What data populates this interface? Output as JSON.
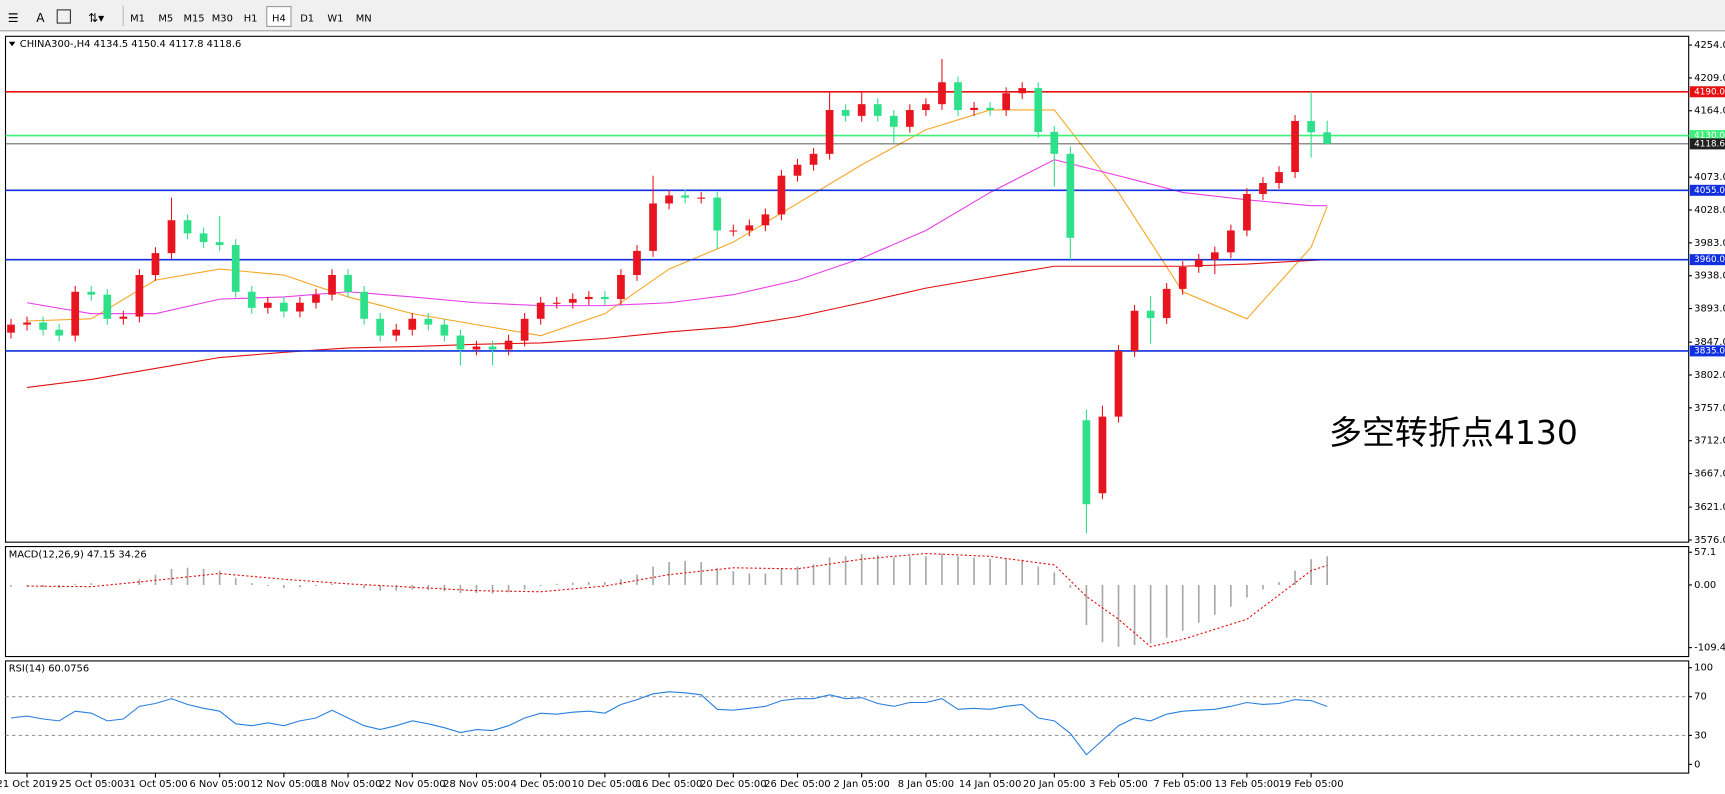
{
  "toolbar": {
    "text_tool": "A",
    "timeframes": [
      "M1",
      "M5",
      "M15",
      "M30",
      "H1",
      "H4",
      "D1",
      "W1",
      "MN"
    ],
    "active": "H4"
  },
  "chart_data": [
    {
      "type": "candlestick",
      "title": "CHINA300-,H4 4134.5 4150.4 4117.8 4118.6",
      "categories": [
        null,
        "21 Oct 2019",
        null,
        null,
        null,
        "25 Oct 05:00",
        null,
        null,
        null,
        "31 Oct 05:00",
        null,
        null,
        null,
        "6 Nov 05:00",
        null,
        null,
        null,
        "12 Nov 05:00",
        null,
        null,
        null,
        "18 Nov 05:00",
        null,
        null,
        null,
        "22 Nov 05:00",
        null,
        null,
        null,
        "28 Nov 05:00",
        null,
        null,
        null,
        "4 Dec 05:00",
        null,
        null,
        null,
        "10 Dec 05:00",
        null,
        null,
        null,
        "16 Dec 05:00",
        null,
        null,
        null,
        "20 Dec 05:00",
        null,
        null,
        null,
        "26 Dec 05:00",
        null,
        null,
        null,
        "2 Jan 05:00",
        null,
        null,
        null,
        "8 Jan 05:00",
        null,
        null,
        null,
        "14 Jan 05:00",
        null,
        null,
        null,
        "20 Jan 05:00",
        null,
        null,
        null,
        "3 Feb 05:00",
        null,
        null,
        null,
        "7 Feb 05:00",
        null,
        null,
        null,
        "13 Feb 05:00",
        null,
        null,
        null,
        "19 Feb 05:00",
        null
      ],
      "open": [
        3860,
        3871,
        3874,
        3864,
        3856,
        3916,
        3912,
        3879,
        3882,
        3939,
        3969,
        4014,
        3996,
        3984,
        3980,
        3916,
        3894,
        3901,
        3889,
        3901,
        3912,
        3939,
        3916,
        3879,
        3856,
        3864,
        3879,
        3871,
        3856,
        3837,
        3841,
        3837,
        3849,
        3879,
        3901,
        3901,
        3906,
        3909,
        3906,
        3939,
        3972,
        4037,
        4048,
        4045,
        4045,
        4000,
        4000,
        4007,
        4022,
        4075,
        4090,
        4105,
        4165,
        4157,
        4173,
        4157,
        4142,
        4165,
        4173,
        4203,
        4165,
        4168,
        4165,
        4188,
        4195,
        4135,
        4105,
        3740,
        3640,
        3745,
        3835,
        3890,
        3880,
        3920,
        3950,
        3960,
        3970,
        4000,
        4050,
        4065,
        4080,
        4150,
        4134.5
      ],
      "high": [
        3879,
        3882,
        3882,
        3872,
        3924,
        3924,
        3920,
        3890,
        3947,
        3977,
        4045,
        4022,
        4004,
        4020,
        3988,
        3924,
        3909,
        3909,
        3909,
        3920,
        3947,
        3947,
        3924,
        3887,
        3872,
        3887,
        3887,
        3879,
        3864,
        3849,
        3849,
        3857,
        3887,
        3909,
        3909,
        3914,
        3917,
        3917,
        3947,
        3980,
        4075,
        4056,
        4056,
        4053,
        4053,
        4008,
        4015,
        4030,
        4083,
        4098,
        4113,
        4190,
        4173,
        4190,
        4181,
        4165,
        4173,
        4181,
        4235,
        4211,
        4176,
        4176,
        4196,
        4203,
        4203,
        4143,
        4115,
        3755,
        3760,
        3843,
        3898,
        3910,
        3928,
        3958,
        3968,
        3978,
        4008,
        4058,
        4073,
        4088,
        4158,
        4190,
        4150.4
      ],
      "low": [
        3852,
        3863,
        3856,
        3848,
        3848,
        3904,
        3871,
        3871,
        3874,
        3931,
        3961,
        3988,
        3976,
        3972,
        3908,
        3886,
        3886,
        3881,
        3881,
        3893,
        3904,
        3908,
        3871,
        3848,
        3848,
        3856,
        3863,
        3848,
        3815,
        3829,
        3815,
        3829,
        3841,
        3871,
        3893,
        3893,
        3898,
        3898,
        3898,
        3931,
        3964,
        4029,
        4037,
        4037,
        3975,
        3992,
        3992,
        3999,
        4014,
        4067,
        4082,
        4097,
        4149,
        4149,
        4149,
        4120,
        4134,
        4157,
        4165,
        4157,
        4157,
        4157,
        4157,
        4180,
        4127,
        4060,
        3960,
        3585,
        3632,
        3737,
        3827,
        3845,
        3872,
        3912,
        3942,
        3940,
        3962,
        3992,
        4042,
        4057,
        4072,
        4100,
        4117.8
      ],
      "close": [
        3871,
        3874,
        3864,
        3856,
        3916,
        3912,
        3879,
        3882,
        3939,
        3969,
        4014,
        3996,
        3984,
        3980,
        3916,
        3894,
        3901,
        3889,
        3901,
        3912,
        3939,
        3916,
        3879,
        3856,
        3864,
        3879,
        3871,
        3856,
        3837,
        3841,
        3837,
        3849,
        3879,
        3901,
        3901,
        3906,
        3909,
        3906,
        3939,
        3972,
        4037,
        4048,
        4045,
        4045,
        4000,
        4000,
        4007,
        4022,
        4075,
        4090,
        4105,
        4165,
        4157,
        4173,
        4157,
        4142,
        4165,
        4173,
        4203,
        4165,
        4168,
        4165,
        4188,
        4195,
        4135,
        4105,
        3990,
        3625,
        3745,
        3835,
        3890,
        3880,
        3920,
        3950,
        3960,
        3970,
        4000,
        4050,
        4065,
        4080,
        4150,
        4134.5,
        4118.6
      ],
      "up_color": "#e8141f",
      "down_color": "#2fe08a",
      "series": [
        {
          "color": "#f5a623",
          "x": [
            1,
            5,
            9,
            13,
            17,
            21,
            25,
            29,
            33,
            37,
            41,
            45,
            49,
            53,
            57,
            61,
            65,
            69,
            73,
            77,
            81,
            82
          ],
          "values": [
            3876,
            3879,
            3932,
            3947,
            3939,
            3909,
            3886,
            3871,
            3856,
            3886,
            3947,
            3984,
            4037,
            4090,
            4138,
            4165,
            4165,
            4052,
            3916,
            3879,
            3977,
            4033
          ]
        },
        {
          "color": "#e83ee8",
          "x": [
            1,
            5,
            9,
            13,
            17,
            21,
            25,
            29,
            33,
            37,
            41,
            45,
            49,
            53,
            57,
            61,
            65,
            69,
            73,
            77,
            81,
            82
          ],
          "values": [
            3901,
            3886,
            3886,
            3906,
            3909,
            3916,
            3909,
            3901,
            3897,
            3897,
            3901,
            3912,
            3932,
            3962,
            4000,
            4052,
            4097,
            4075,
            4052,
            4042,
            4034,
            4034
          ]
        },
        {
          "color": "#e01010",
          "x": [
            1,
            5,
            9,
            13,
            17,
            21,
            25,
            29,
            33,
            37,
            41,
            45,
            49,
            53,
            57,
            61,
            65,
            69,
            73,
            77,
            81,
            82
          ],
          "values": [
            3785,
            3796,
            3811,
            3826,
            3833,
            3839,
            3841,
            3844,
            3846,
            3852,
            3861,
            3868,
            3882,
            3901,
            3921,
            3936,
            3951,
            3951,
            3951,
            3954,
            3959,
            3960
          ]
        }
      ],
      "hlines": [
        {
          "value": 4190,
          "label": "4190.0",
          "color": "#e81010"
        },
        {
          "value": 4130,
          "label": "4130.0",
          "color": "#3ef07a"
        },
        {
          "value": 4118.6,
          "label": "4118.6",
          "color": "#202020"
        },
        {
          "value": 4055,
          "label": "4055.0",
          "color": "#1030e0"
        },
        {
          "value": 3960,
          "label": "3960.0",
          "color": "#1030e0"
        },
        {
          "value": 3835,
          "label": "3835.0",
          "color": "#1030e0"
        }
      ],
      "annotation": "多空转折点4130",
      "ylim": [
        3573,
        4266
      ],
      "yticks": [
        {
          "value": 4254,
          "label": "4254.0"
        },
        {
          "value": 4209,
          "label": "4209.0"
        },
        {
          "value": 4164,
          "label": "4164.0"
        },
        {
          "value": 4073,
          "label": "4073.0"
        },
        {
          "value": 4028,
          "label": "4028.0"
        },
        {
          "value": 3983,
          "label": "3983.0"
        },
        {
          "value": 3938,
          "label": "3938.0"
        },
        {
          "value": 3893,
          "label": "3893.0"
        },
        {
          "value": 3847,
          "label": "3847.0"
        },
        {
          "value": 3802,
          "label": "3802.0"
        },
        {
          "value": 3757,
          "label": "3757.0"
        },
        {
          "value": 3712,
          "label": "3712.0"
        },
        {
          "value": 3667,
          "label": "3667.0"
        },
        {
          "value": 3621,
          "label": "3621.0"
        },
        {
          "value": 3576,
          "label": "3576.0"
        }
      ]
    },
    {
      "type": "macd",
      "title": "MACD(12,26,9) 47.15 34.26",
      "values": [
        -3,
        -2,
        -4,
        -5,
        2,
        3,
        -1,
        0,
        10,
        18,
        28,
        30,
        28,
        25,
        12,
        3,
        -2,
        -5,
        -4,
        -2,
        2,
        0,
        -6,
        -10,
        -10,
        -8,
        -9,
        -11,
        -14,
        -14,
        -15,
        -13,
        -8,
        -2,
        2,
        4,
        5,
        5,
        10,
        18,
        32,
        40,
        42,
        40,
        30,
        24,
        20,
        20,
        28,
        32,
        36,
        48,
        50,
        54,
        52,
        48,
        50,
        50,
        55,
        50,
        48,
        46,
        46,
        44,
        32,
        22,
        -5,
        -70,
        -100,
        -108,
        -105,
        -102,
        -92,
        -80,
        -66,
        -52,
        -38,
        -22,
        -8,
        5,
        25,
        45,
        50
      ],
      "color": "#a8a8a8",
      "signal": {
        "color": "#e01010",
        "x": [
          1,
          5,
          9,
          13,
          17,
          21,
          25,
          29,
          33,
          37,
          41,
          45,
          49,
          53,
          57,
          61,
          65,
          67,
          69,
          71,
          73,
          77,
          81,
          82
        ],
        "values": [
          -2,
          -3,
          8,
          20,
          10,
          2,
          -4,
          -10,
          -12,
          -2,
          18,
          30,
          28,
          45,
          55,
          50,
          35,
          -20,
          -60,
          -108,
          -95,
          -60,
          25,
          34.26
        ]
      },
      "ylim": [
        -125,
        67
      ],
      "yticks": [
        57.1,
        {
          "value": 0,
          "label": "0.00"
        },
        -109.43
      ]
    },
    {
      "type": "line",
      "title": "RSI(14) 60.0756",
      "color": "#2a7fe0",
      "values": [
        48,
        50,
        47,
        45,
        55,
        53,
        45,
        47,
        60,
        63,
        68,
        62,
        58,
        55,
        42,
        40,
        43,
        40,
        45,
        48,
        56,
        48,
        40,
        36,
        40,
        45,
        42,
        38,
        33,
        36,
        35,
        40,
        48,
        53,
        52,
        54,
        55,
        53,
        62,
        67,
        73,
        75,
        74,
        72,
        57,
        56,
        58,
        60,
        66,
        68,
        68,
        72,
        68,
        69,
        63,
        60,
        64,
        64,
        68,
        57,
        58,
        57,
        60,
        62,
        48,
        45,
        32,
        10,
        25,
        40,
        48,
        45,
        52,
        55,
        56,
        57,
        60,
        64,
        62,
        63,
        67,
        66,
        60.0756
      ],
      "levels": [
        70,
        30
      ],
      "ylim": [
        -9,
        107
      ],
      "yticks": [
        100,
        70,
        30,
        0
      ]
    }
  ]
}
